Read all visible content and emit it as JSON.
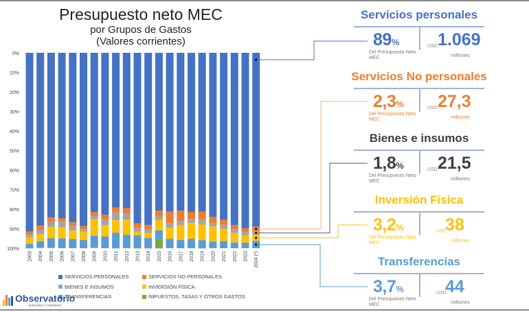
{
  "title": {
    "line1": "Presupuesto neto MEC",
    "line2": "por Grupos de Gastos",
    "line3": "(Valores corrientes)"
  },
  "chart_data": {
    "type": "bar",
    "stacked": true,
    "percent_stacked": true,
    "y_axis_inverted": true,
    "ylim": [
      0,
      100
    ],
    "yticks": [
      "0%",
      "10%",
      "20%",
      "30%",
      "40%",
      "50%",
      "60%",
      "70%",
      "80%",
      "90%",
      "100%"
    ],
    "grid": false,
    "legend_placement": "bottom",
    "categories": [
      "2003",
      "2004",
      "2005",
      "2006",
      "2007",
      "2008",
      "2009",
      "2010",
      "2011",
      "2012",
      "2013",
      "2014",
      "2015",
      "2016",
      "2017",
      "2018",
      "2019",
      "2020",
      "2021",
      "2022",
      "2023",
      "2024 (*)"
    ],
    "series": [
      {
        "name": "SERVICIOS PERSONALES",
        "color": "#4472C4",
        "values": [
          91.5,
          88.4,
          84.3,
          84.7,
          86.7,
          88.7,
          81.6,
          82.8,
          79.1,
          79.5,
          87.3,
          88.1,
          80.7,
          81.3,
          80.8,
          81.4,
          81.3,
          84.0,
          85.5,
          88.1,
          89.8,
          89.0
        ]
      },
      {
        "name": "SERVICIOS NO PERSONALES",
        "color": "#ED7D31",
        "values": [
          1.6,
          2.3,
          2.2,
          1.9,
          2.0,
          1.6,
          2.0,
          2.3,
          2.6,
          2.6,
          2.2,
          2.1,
          3.0,
          6.0,
          5.4,
          3.6,
          3.9,
          3.0,
          2.5,
          2.2,
          2.0,
          2.3
        ]
      },
      {
        "name": "BIENES E INSUMOS",
        "color": "#A5A5A5",
        "values": [
          1.5,
          2.2,
          2.6,
          2.7,
          2.3,
          1.1,
          1.5,
          3.2,
          4.0,
          3.3,
          1.9,
          2.0,
          1.9,
          2.2,
          2.1,
          2.1,
          2.7,
          1.9,
          2.1,
          1.9,
          1.8,
          1.8
        ]
      },
      {
        "name": "INVERSIÓN FÍSICA",
        "color": "#FFC000",
        "values": [
          3.2,
          3.6,
          5.8,
          5.7,
          4.3,
          4.4,
          8.5,
          5.7,
          6.4,
          7.7,
          2.0,
          2.6,
          5.3,
          5.7,
          7.4,
          8.1,
          8.0,
          7.7,
          6.3,
          4.9,
          3.6,
          3.2
        ]
      },
      {
        "name": "TRANSFERENCIAS",
        "color": "#5B9BD5",
        "values": [
          2.3,
          3.4,
          5.0,
          5.0,
          4.7,
          4.2,
          6.3,
          6.0,
          8.0,
          6.9,
          6.1,
          5.3,
          4.6,
          4.8,
          4.3,
          4.8,
          4.2,
          3.4,
          3.6,
          2.9,
          2.8,
          3.7
        ]
      },
      {
        "name": "IMPUESTOS, TASAS Y OTROS GASTOS",
        "color": "#70AD47",
        "values": [
          0,
          0,
          0,
          0,
          0,
          0,
          0,
          0,
          0,
          0,
          0.6,
          0,
          4.6,
          0,
          0,
          0,
          0,
          0,
          0,
          0,
          0,
          0
        ]
      }
    ]
  },
  "logo": {
    "name": "Observatorio",
    "sub": "Educativo Ciudadano"
  },
  "panels": [
    {
      "title": "Servicios personales",
      "pct": "89",
      "pct_sign": "%",
      "sub": "Del Presupuesto Neto MEC",
      "usd": "USD.",
      "amount": "1.069",
      "unit": "millones",
      "color": "#4472C4"
    },
    {
      "title": "Servicios No personales",
      "pct": "2,3",
      "pct_sign": "%",
      "sub": "Del Presupuesto Neto MEC",
      "usd": "USD.",
      "amount": "27,3",
      "unit": "millones",
      "color": "#ED7D31"
    },
    {
      "title": "Bienes e insumos",
      "pct": "1,8",
      "pct_sign": "%",
      "sub": "Del Presupuesto Neto MEC",
      "usd": "USD.",
      "amount": "21,5",
      "unit": "millones",
      "color": "#404040"
    },
    {
      "title": "Inversión Física",
      "pct": "3,2",
      "pct_sign": "%",
      "sub": "Del Presupuesto Neto MEC",
      "usd": "USD",
      "amount": "38",
      "unit": "millones",
      "color": "#FFC000"
    },
    {
      "title": "Transferencias",
      "pct": "3,7",
      "pct_sign": "%",
      "sub": "Del Presupuesto Neto MEC",
      "usd": "USD",
      "amount": "44",
      "unit": "millones",
      "color": "#5B9BD5"
    }
  ]
}
